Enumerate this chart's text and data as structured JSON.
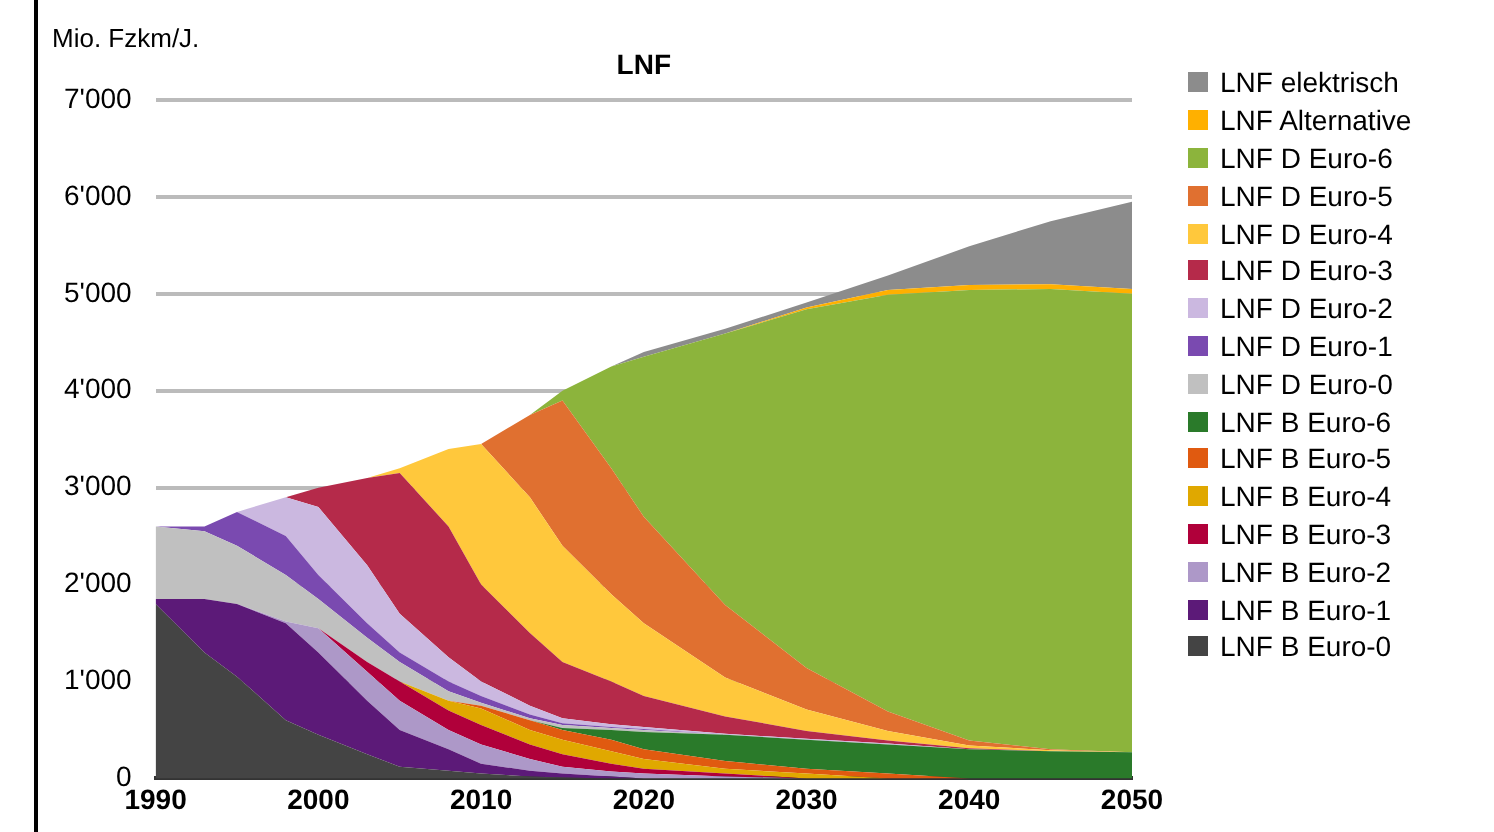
{
  "chart_data": {
    "type": "area",
    "title": "LNF",
    "ylabel": "Mio. Fzkm/J.",
    "stacked": true,
    "legend": "right",
    "grid": "y",
    "marker": "none",
    "x": [
      1990,
      1993,
      1995,
      1998,
      2000,
      2003,
      2005,
      2008,
      2010,
      2013,
      2015,
      2018,
      2020,
      2025,
      2030,
      2035,
      2040,
      2045,
      2050
    ],
    "xlim": [
      1990,
      2050
    ],
    "xticks": [
      1990,
      2000,
      2010,
      2020,
      2030,
      2040,
      2050
    ],
    "ylim": [
      0,
      7000
    ],
    "yticks": [
      0,
      {
        "value": 1000,
        "label": "1'000"
      },
      {
        "value": 2000,
        "label": "2'000"
      },
      {
        "value": 3000,
        "label": "3'000"
      },
      {
        "value": 4000,
        "label": "4'000"
      },
      {
        "value": 5000,
        "label": "5'000"
      },
      {
        "value": 6000,
        "label": "6'000"
      },
      {
        "value": 7000,
        "label": "7'000"
      }
    ],
    "series": [
      {
        "name": "LNF B Euro-0",
        "color": "#444444",
        "values": [
          1800,
          1300,
          1050,
          600,
          450,
          250,
          120,
          80,
          50,
          20,
          10,
          0,
          null,
          null,
          null,
          null,
          null,
          null,
          null
        ]
      },
      {
        "name": "LNF B Euro-1",
        "color": "#5c1a78",
        "values": [
          50,
          550,
          750,
          1000,
          850,
          550,
          380,
          220,
          100,
          60,
          40,
          20,
          0,
          null,
          null,
          null,
          null,
          null,
          null
        ]
      },
      {
        "name": "LNF B Euro-2",
        "color": "#ad98c8",
        "values": [
          null,
          null,
          0,
          20,
          250,
          300,
          300,
          200,
          200,
          120,
          70,
          50,
          50,
          20,
          0,
          null,
          null,
          null,
          null
        ]
      },
      {
        "name": "LNF B Euro-3",
        "color": "#b0003a",
        "values": [
          null,
          null,
          null,
          null,
          0,
          100,
          200,
          200,
          200,
          150,
          130,
          80,
          50,
          30,
          0,
          null,
          null,
          null,
          null
        ]
      },
      {
        "name": "LNF B Euro-4",
        "color": "#e0a800",
        "values": [
          null,
          null,
          null,
          null,
          null,
          0,
          0,
          100,
          170,
          150,
          150,
          130,
          100,
          50,
          50,
          0,
          null,
          null,
          null
        ]
      },
      {
        "name": "LNF B Euro-5",
        "color": "#e05a10",
        "values": [
          null,
          null,
          null,
          null,
          null,
          null,
          null,
          0,
          30,
          100,
          100,
          120,
          100,
          80,
          50,
          50,
          0,
          null,
          null
        ]
      },
      {
        "name": "LNF B Euro-6",
        "color": "#2a7a2a",
        "values": [
          null,
          null,
          null,
          null,
          null,
          null,
          null,
          null,
          null,
          0,
          20,
          100,
          180,
          270,
          300,
          300,
          300,
          280,
          270
        ]
      },
      {
        "name": "LNF D Euro-0",
        "color": "#c0c0c0",
        "values": [
          750,
          700,
          600,
          480,
          300,
          250,
          200,
          100,
          30,
          20,
          30,
          20,
          20,
          0,
          0,
          0,
          0,
          0,
          0
        ]
      },
      {
        "name": "LNF D Euro-1",
        "color": "#7a4ab0",
        "values": [
          0,
          50,
          350,
          400,
          250,
          150,
          100,
          100,
          70,
          40,
          20,
          10,
          10,
          0,
          null,
          null,
          null,
          null,
          null
        ]
      },
      {
        "name": "LNF D Euro-2",
        "color": "#cbb8e0",
        "values": [
          null,
          null,
          0,
          400,
          700,
          600,
          400,
          250,
          150,
          90,
          50,
          30,
          20,
          10,
          10,
          10,
          0,
          null,
          null
        ]
      },
      {
        "name": "LNF D Euro-3",
        "color": "#b52a4a",
        "values": [
          null,
          null,
          null,
          0,
          200,
          900,
          1450,
          1350,
          1000,
          750,
          580,
          440,
          320,
          180,
          80,
          30,
          10,
          0,
          null
        ]
      },
      {
        "name": "LNF D Euro-4",
        "color": "#ffc83c",
        "values": [
          null,
          null,
          null,
          null,
          null,
          0,
          50,
          800,
          1450,
          1400,
          1200,
          900,
          750,
          400,
          220,
          100,
          30,
          10,
          0
        ]
      },
      {
        "name": "LNF D Euro-5",
        "color": "#e07030",
        "values": [
          null,
          null,
          null,
          null,
          null,
          null,
          null,
          null,
          0,
          850,
          1500,
          1300,
          1100,
          750,
          430,
          200,
          50,
          10,
          0
        ]
      },
      {
        "name": "LNF D Euro-6",
        "color": "#8cb43c",
        "values": [
          null,
          null,
          null,
          null,
          null,
          null,
          null,
          null,
          null,
          0,
          100,
          1050,
          1650,
          2800,
          3700,
          4300,
          4650,
          4750,
          4730
        ]
      },
      {
        "name": "LNF Alternative",
        "color": "#ffb000",
        "values": [
          null,
          null,
          null,
          null,
          null,
          null,
          null,
          null,
          null,
          null,
          null,
          null,
          null,
          0,
          20,
          50,
          50,
          50,
          50
        ]
      },
      {
        "name": "LNF elektrisch",
        "color": "#8c8c8c",
        "values": [
          null,
          null,
          null,
          null,
          null,
          null,
          null,
          null,
          null,
          null,
          null,
          0,
          50,
          50,
          50,
          150,
          400,
          650,
          900
        ]
      }
    ]
  }
}
